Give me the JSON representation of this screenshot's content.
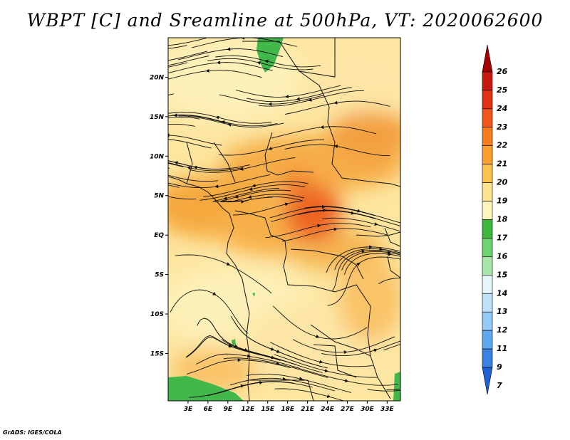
{
  "title": "WBPT [C] and Sreamline at 500hPa, VT: 2020062600",
  "footer": "GrADS: IGES/COLA",
  "map": {
    "lon_range": [
      0,
      35
    ],
    "lat_range": [
      -21,
      25
    ],
    "lon_ticks": [
      "3E",
      "6E",
      "9E",
      "12E",
      "15E",
      "18E",
      "21E",
      "24E",
      "27E",
      "30E",
      "33E"
    ],
    "lat_ticks": [
      "20N",
      "15N",
      "10N",
      "5N",
      "EQ",
      "5S",
      "10S",
      "15S"
    ],
    "lon_values": [
      3,
      6,
      9,
      12,
      15,
      18,
      21,
      24,
      27,
      30,
      33
    ],
    "lat_values": [
      20,
      15,
      10,
      5,
      0,
      -5,
      -10,
      -15
    ]
  },
  "colorbar": {
    "labels": [
      "26",
      "25",
      "24",
      "23",
      "22",
      "21",
      "20",
      "19",
      "18",
      "17",
      "16",
      "15",
      "14",
      "13",
      "12",
      "11",
      "9",
      "7"
    ],
    "colors": [
      "#a50000",
      "#c8170f",
      "#e13214",
      "#f0551e",
      "#f57d1e",
      "#f9a12c",
      "#fbc351",
      "#fde28f",
      "#fcf5bd",
      "#3cb93c",
      "#6fd36f",
      "#a8e6a8",
      "#e4f6f8",
      "#bfe1f8",
      "#94caf5",
      "#5ea8ee",
      "#3c82e3",
      "#1e5fd6"
    ]
  },
  "colors": {
    "green": "#43b84a",
    "orange_warm": "#f3a43b",
    "orange_hot": "#ee6a23",
    "yellow": "#fde09a",
    "pale": "#fdf0b8"
  }
}
